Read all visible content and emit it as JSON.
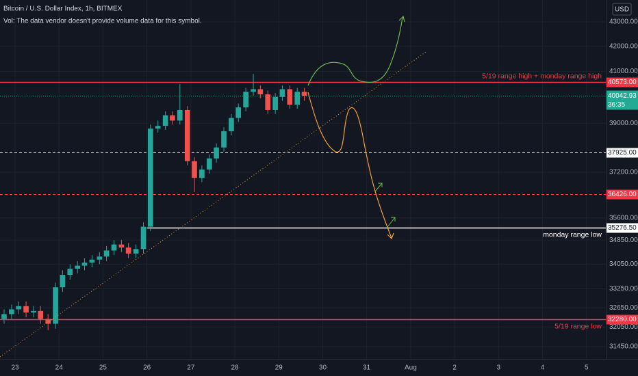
{
  "chart_data": {
    "type": "candlestick",
    "title": "Bitcoin / U.S. Dollar Index, 1h, BITMEX",
    "subtitle": "Vol: The data vendor doesn't provide volume data for this symbol.",
    "currency": "USD",
    "log_scale": true,
    "grid": true,
    "up_color": "#26a69a",
    "down_color": "#ef5350",
    "x": [
      22.75,
      22.92,
      23.08,
      23.25,
      23.42,
      23.58,
      23.75,
      23.92,
      24.08,
      24.25,
      24.42,
      24.58,
      24.75,
      24.92,
      25.08,
      25.25,
      25.42,
      25.58,
      25.75,
      25.92,
      26.08,
      26.25,
      26.42,
      26.58,
      26.75,
      26.92,
      27.08,
      27.25,
      27.42,
      27.58,
      27.75,
      27.92,
      28.08,
      28.25,
      28.42,
      28.58,
      28.75,
      28.92,
      29.08,
      29.25,
      29.42,
      29.58
    ],
    "open": [
      32300,
      32450,
      32600,
      32700,
      32500,
      32550,
      32300,
      32150,
      33300,
      33700,
      33900,
      34000,
      34100,
      34200,
      34300,
      34500,
      34700,
      34600,
      34400,
      34550,
      35300,
      38800,
      38900,
      39300,
      39100,
      39500,
      37600,
      37000,
      37300,
      37700,
      38100,
      38700,
      39200,
      39600,
      40200,
      40300,
      40100,
      39500,
      40000,
      40300,
      39700,
      40200
    ],
    "high": [
      32600,
      32750,
      32850,
      32850,
      32700,
      32700,
      32450,
      33450,
      33850,
      34050,
      34150,
      34250,
      34350,
      34450,
      34650,
      34850,
      34850,
      34750,
      34700,
      35450,
      38950,
      39100,
      39450,
      39450,
      40500,
      39650,
      37750,
      37450,
      37850,
      38250,
      38850,
      39350,
      39750,
      40350,
      40900,
      40450,
      40250,
      40150,
      40450,
      40450,
      40350,
      40350
    ],
    "low": [
      32150,
      32300,
      32450,
      32350,
      32350,
      32150,
      31950,
      32000,
      33150,
      33550,
      33750,
      33850,
      33950,
      34050,
      34150,
      34350,
      34450,
      34250,
      34250,
      34400,
      35150,
      38650,
      38750,
      38950,
      38950,
      37450,
      36500,
      36850,
      37150,
      37550,
      37950,
      38550,
      39050,
      39450,
      40050,
      39950,
      39350,
      39350,
      39850,
      39550,
      39550,
      39850
    ],
    "close": [
      32450,
      32600,
      32700,
      32500,
      32550,
      32300,
      32150,
      33300,
      33700,
      33900,
      34000,
      34100,
      34200,
      34300,
      34500,
      34700,
      34600,
      34400,
      34550,
      35300,
      38800,
      38900,
      39300,
      39100,
      39500,
      37600,
      37000,
      37300,
      37700,
      38100,
      38700,
      39200,
      39600,
      40200,
      40300,
      40100,
      39500,
      40000,
      40300,
      39700,
      40200,
      40043
    ],
    "xlim": [
      22.657,
      36.44
    ],
    "xticks": [
      23,
      24,
      25,
      26,
      27,
      28,
      29,
      30,
      31,
      {
        "value": 32,
        "label": "Aug"
      },
      {
        "value": 33,
        "label": "2"
      },
      {
        "value": 34,
        "label": "3"
      },
      {
        "value": 35,
        "label": "4"
      },
      {
        "value": 36,
        "label": "5"
      }
    ],
    "ylim": [
      31080,
      43916
    ],
    "yticks": [
      {
        "value": 43000,
        "label": "43000.00"
      },
      {
        "value": 42000,
        "label": "42000.00"
      },
      {
        "value": 41000,
        "label": "41000.00"
      },
      {
        "value": 39000,
        "label": "39000.00"
      },
      {
        "value": 37200,
        "label": "37200.00"
      },
      {
        "value": 35600,
        "label": "35600.00"
      },
      {
        "value": 34850,
        "label": "34850.00"
      },
      {
        "value": 34050,
        "label": "34050.00"
      },
      {
        "value": 33250,
        "label": "33250.00"
      },
      {
        "value": 32650,
        "label": "32650.00"
      },
      {
        "value": 32050,
        "label": "32050.00"
      },
      {
        "value": 31450,
        "label": "31450.00"
      }
    ],
    "levels": [
      {
        "value": 40573,
        "label": "40573.00",
        "color": "#f23645",
        "dashed": false,
        "text": "5/19 range high + monday range high"
      },
      {
        "value": 37925,
        "label": "37925.00",
        "color": "#ffffff",
        "dashed": true
      },
      {
        "value": 36426,
        "label": "36426.00",
        "color": "#f23645",
        "dashed": true
      },
      {
        "value": 35276.5,
        "label": "35276.50",
        "color": "#ffffff",
        "dashed": false,
        "start": 26,
        "text": "monday range low"
      },
      {
        "value": 32280,
        "label": "32280.00",
        "color": "#f23645",
        "dashed": false,
        "text": "5/19 range low"
      }
    ],
    "last_price": {
      "value": 40042.93,
      "label": "40042.93",
      "countdown": "36:35",
      "color": "#22ab94"
    }
  }
}
